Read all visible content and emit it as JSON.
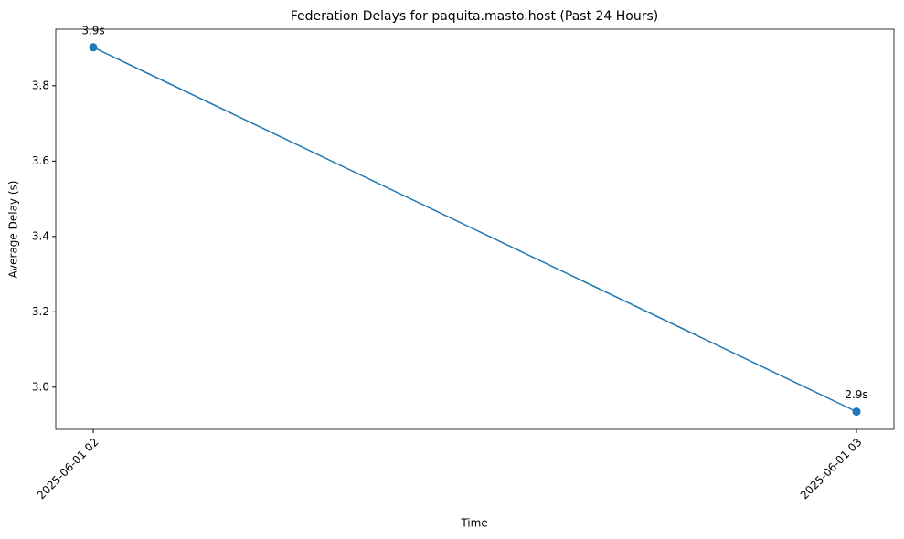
{
  "chart_data": {
    "type": "line",
    "title": "Federation Delays for paquita.masto.host (Past 24 Hours)",
    "x_label": "Time",
    "y_label": "Average Delay (s)",
    "categories": [
      "2025-06-01 02",
      "2025-06-01 03"
    ],
    "series": [
      {
        "name": "Average Delay",
        "color": "#1f77b4",
        "values": [
          3.902,
          2.935
        ],
        "value_labels": [
          "3.9s",
          "2.9s"
        ]
      }
    ],
    "ylim": [
      2.888,
      3.95
    ],
    "yticks": [
      {
        "value": 3.0,
        "label": "3.0"
      },
      3.2,
      3.4,
      3.6,
      3.8
    ]
  }
}
